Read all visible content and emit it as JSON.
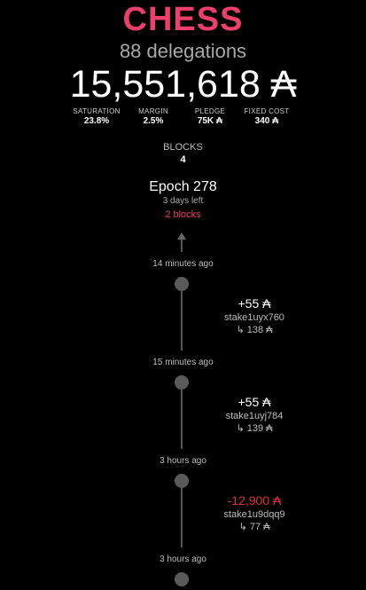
{
  "pool": {
    "name": "CHESS",
    "delegations": "88 delegations",
    "total": "15,551,618 ₳"
  },
  "stats": [
    {
      "label": "SATURATION",
      "value": "23.8%"
    },
    {
      "label": "MARGIN",
      "value": "2.5%"
    },
    {
      "label": "PLEDGE",
      "value": "75K ₳"
    },
    {
      "label": "FIXED COST",
      "value": "340 ₳"
    }
  ],
  "blocks": {
    "label": "BLOCKS",
    "value": "4"
  },
  "epoch": {
    "title": "Epoch 278",
    "time_left": "3 days left",
    "blocks": "2 blocks"
  },
  "timeline": [
    {
      "time": "14 minutes ago",
      "amount": "+55 ₳",
      "stake": "stake1uyx760",
      "balance": "↳ 138 ₳"
    },
    {
      "time": "15 minutes ago",
      "amount": "+55 ₳",
      "stake": "stake1uyj784",
      "balance": "↳ 139 ₳"
    },
    {
      "time": "3 hours ago",
      "amount": "-12,900 ₳",
      "stake": "stake1u9dqq9",
      "balance": "↳ 77 ₳"
    },
    {
      "time": "3 hours ago"
    }
  ],
  "colors": {
    "brand": "#ec3f6b",
    "negative": "#e0323b",
    "background": "#000000"
  }
}
